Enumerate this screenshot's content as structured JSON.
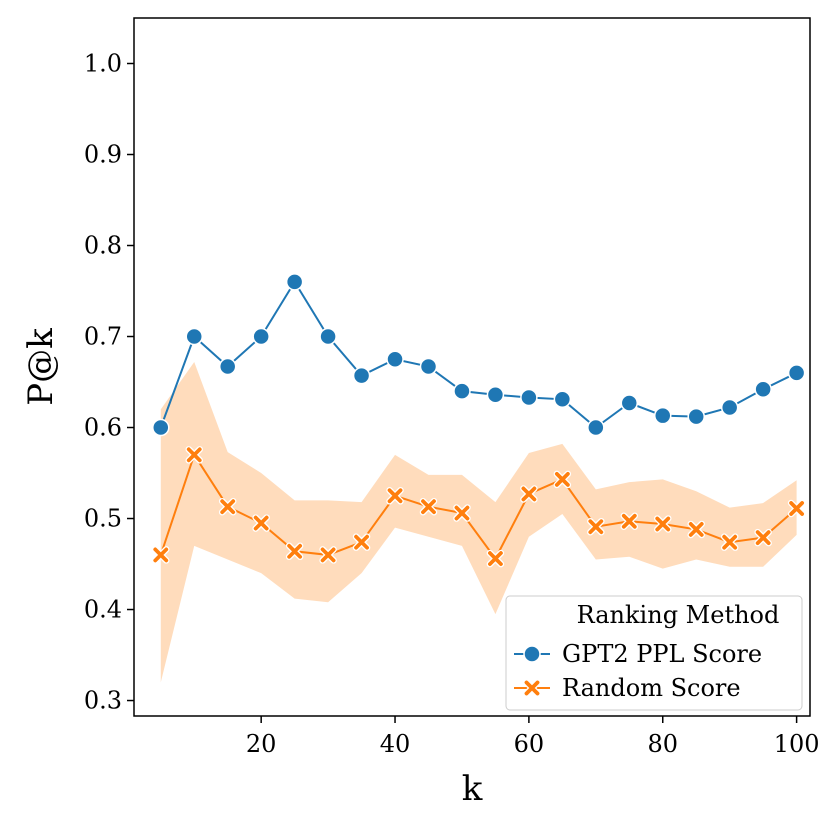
{
  "chart_data": {
    "type": "line",
    "xlabel": "k",
    "ylabel": "P@k",
    "xlim": [
      1,
      102
    ],
    "ylim": [
      0.283,
      1.05
    ],
    "x_ticks": [
      20,
      40,
      60,
      80,
      100
    ],
    "x_tick_labels": [
      "20",
      "40",
      "60",
      "80",
      "100"
    ],
    "y_ticks": [
      0.3,
      0.4,
      0.5,
      0.6,
      0.7,
      0.8,
      0.9,
      1.0
    ],
    "y_tick_labels": [
      "0.3",
      "0.4",
      "0.5",
      "0.6",
      "0.7",
      "0.8",
      "0.9",
      "1.0"
    ],
    "grid": false,
    "legend": {
      "title": "Ranking Method",
      "position": "lower-right",
      "entries": [
        "GPT2 PPL Score",
        "Random Score"
      ]
    },
    "x": [
      5,
      10,
      15,
      20,
      25,
      30,
      35,
      40,
      45,
      50,
      55,
      60,
      65,
      70,
      75,
      80,
      85,
      90,
      95,
      100
    ],
    "series": [
      {
        "name": "GPT2 PPL Score",
        "color": "#1f77b4",
        "marker": "circle",
        "values": [
          0.6,
          0.7,
          0.667,
          0.7,
          0.76,
          0.7,
          0.657,
          0.675,
          0.667,
          0.64,
          0.636,
          0.633,
          0.631,
          0.6,
          0.627,
          0.613,
          0.612,
          0.622,
          0.642,
          0.66
        ]
      },
      {
        "name": "Random Score",
        "color": "#ff7f0e",
        "marker": "x",
        "values": [
          0.46,
          0.57,
          0.513,
          0.495,
          0.464,
          0.46,
          0.474,
          0.525,
          0.513,
          0.506,
          0.456,
          0.527,
          0.543,
          0.491,
          0.497,
          0.494,
          0.488,
          0.474,
          0.479,
          0.511
        ],
        "ci_lower": [
          0.32,
          0.47,
          0.455,
          0.44,
          0.412,
          0.408,
          0.44,
          0.49,
          0.48,
          0.47,
          0.395,
          0.48,
          0.505,
          0.455,
          0.458,
          0.445,
          0.455,
          0.447,
          0.447,
          0.482
        ],
        "ci_upper": [
          0.62,
          0.672,
          0.573,
          0.55,
          0.52,
          0.52,
          0.518,
          0.57,
          0.548,
          0.548,
          0.518,
          0.572,
          0.582,
          0.532,
          0.54,
          0.543,
          0.53,
          0.512,
          0.517,
          0.542
        ],
        "band_color": "#ffdcbc"
      }
    ]
  }
}
